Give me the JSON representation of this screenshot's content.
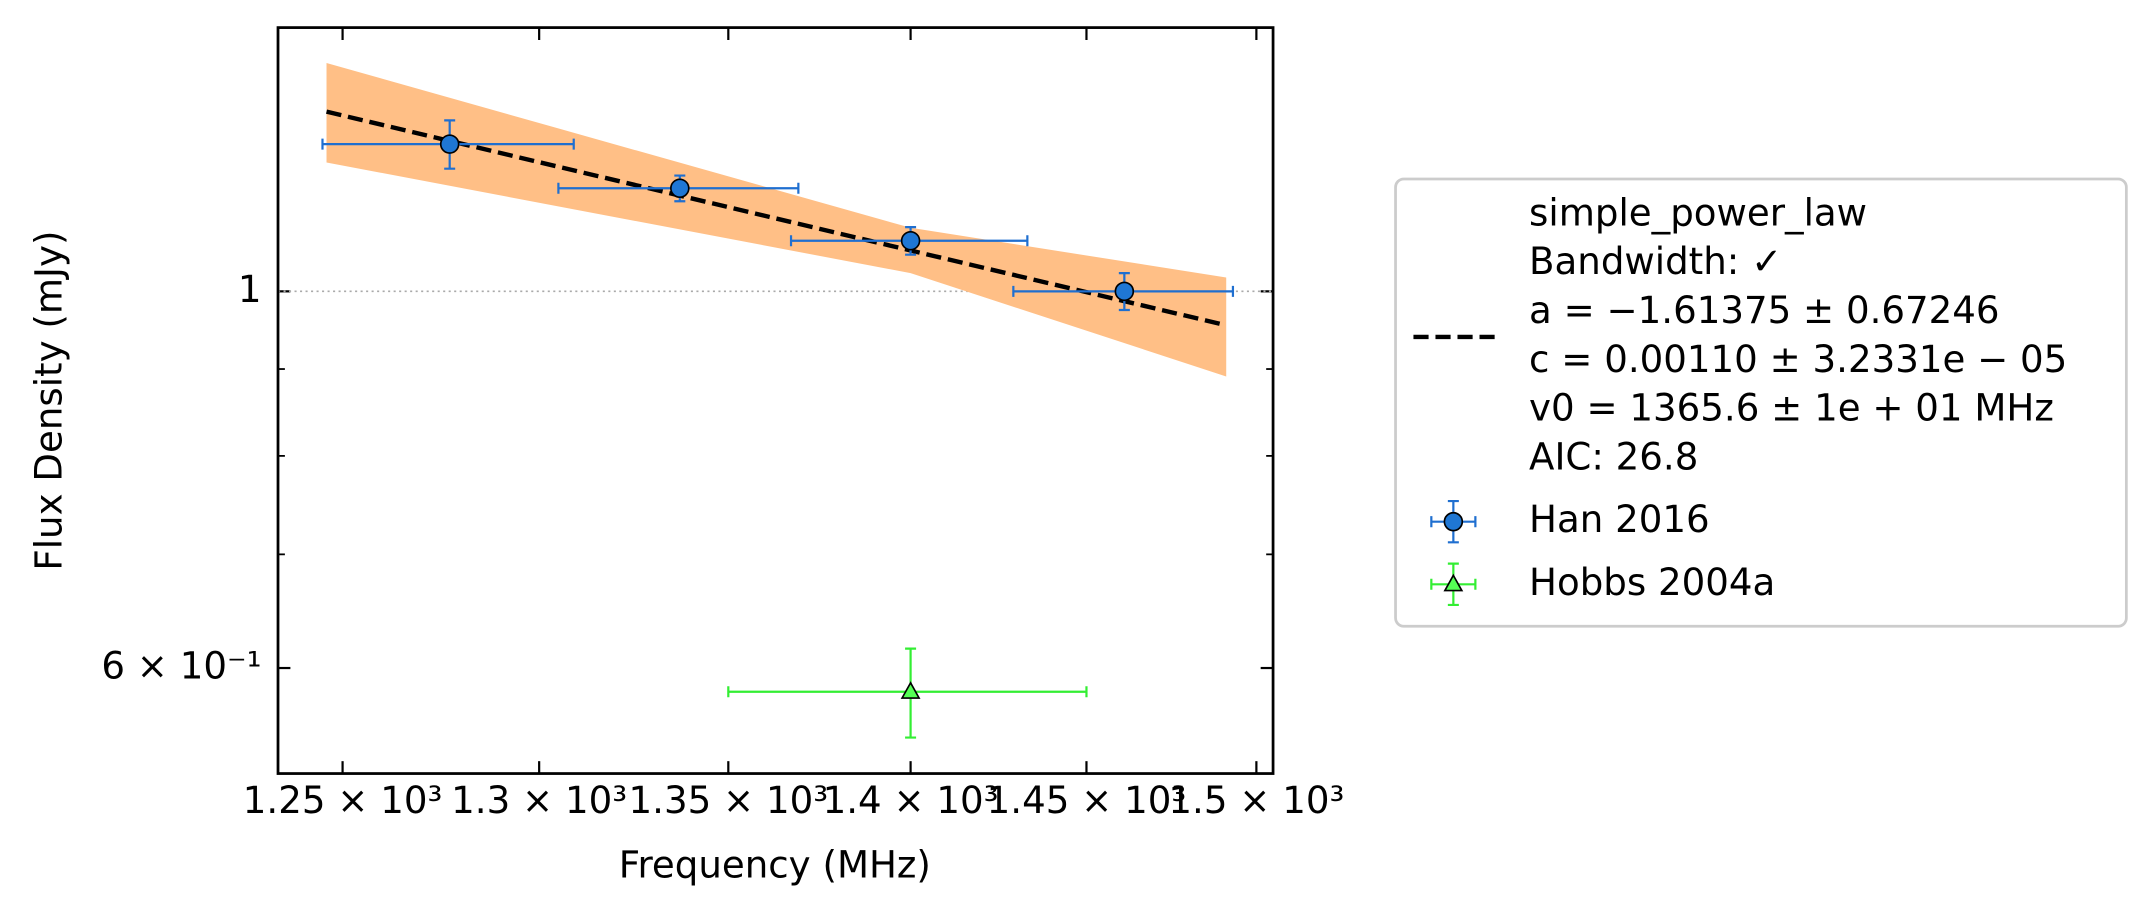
{
  "chart_data": {
    "type": "scatter",
    "xlabel": "Frequency (MHz)",
    "ylabel": "Flux Density (mJy)",
    "xscale": "log",
    "yscale": "log",
    "xlim": [
      1234,
      1505
    ],
    "ylim": [
      0.52,
      1.43
    ],
    "xticks": [
      {
        "value": 1250,
        "label": "1.25 × 10³"
      },
      {
        "value": 1300,
        "label": "1.3 × 10³"
      },
      {
        "value": 1350,
        "label": "1.35 × 10³"
      },
      {
        "value": 1400,
        "label": "1.4 × 10³"
      },
      {
        "value": 1450,
        "label": "1.45 × 10³"
      },
      {
        "value": 1500,
        "label": "1.5 × 10³"
      }
    ],
    "yticks": [
      1,
      {
        "value": 0.6,
        "label": "6 × 10⁻¹"
      }
    ],
    "yminorticks": [
      0.7,
      0.8,
      0.9
    ],
    "hline": 1,
    "legend": "right",
    "series": [
      {
        "type": "line",
        "name": [
          "simple_power_law",
          "Bandwidth: ✓",
          "a = −1.61375 ± 0.67246",
          "c = 0.00110 ± 3.2331e − 05",
          "v0 = 1365.6 ± 1e + 01 MHz",
          "AIC: 26.8"
        ],
        "color": "#000000",
        "band_color": "#ffbf86",
        "x": [
          1246,
          1400,
          1491
        ],
        "values": [
          1.276,
          1.057,
          0.955
        ],
        "band_upper": [
          1.363,
          1.09,
          1.019
        ],
        "band_lower": [
          1.191,
          1.025,
          0.891
        ]
      },
      {
        "type": "errorbar",
        "name": "Han 2016",
        "color": "#1f6fd0",
        "marker": "circle",
        "marker_color": "#1f77d4",
        "x": [
          1277,
          1337,
          1400,
          1461
        ],
        "values": [
          1.221,
          1.15,
          1.071,
          1.0
        ],
        "xerr": [
          32,
          32,
          33,
          32
        ],
        "yerr": [
          0.04,
          0.02,
          0.02,
          0.025
        ]
      },
      {
        "type": "errorbar",
        "name": "Hobbs 2004a",
        "color": "#33ee33",
        "marker": "triangle",
        "marker_color": "#55ff55",
        "x": [
          1400
        ],
        "values": [
          0.581
        ],
        "xerr": [
          50
        ],
        "yerr": [
          0.035
        ]
      }
    ]
  }
}
